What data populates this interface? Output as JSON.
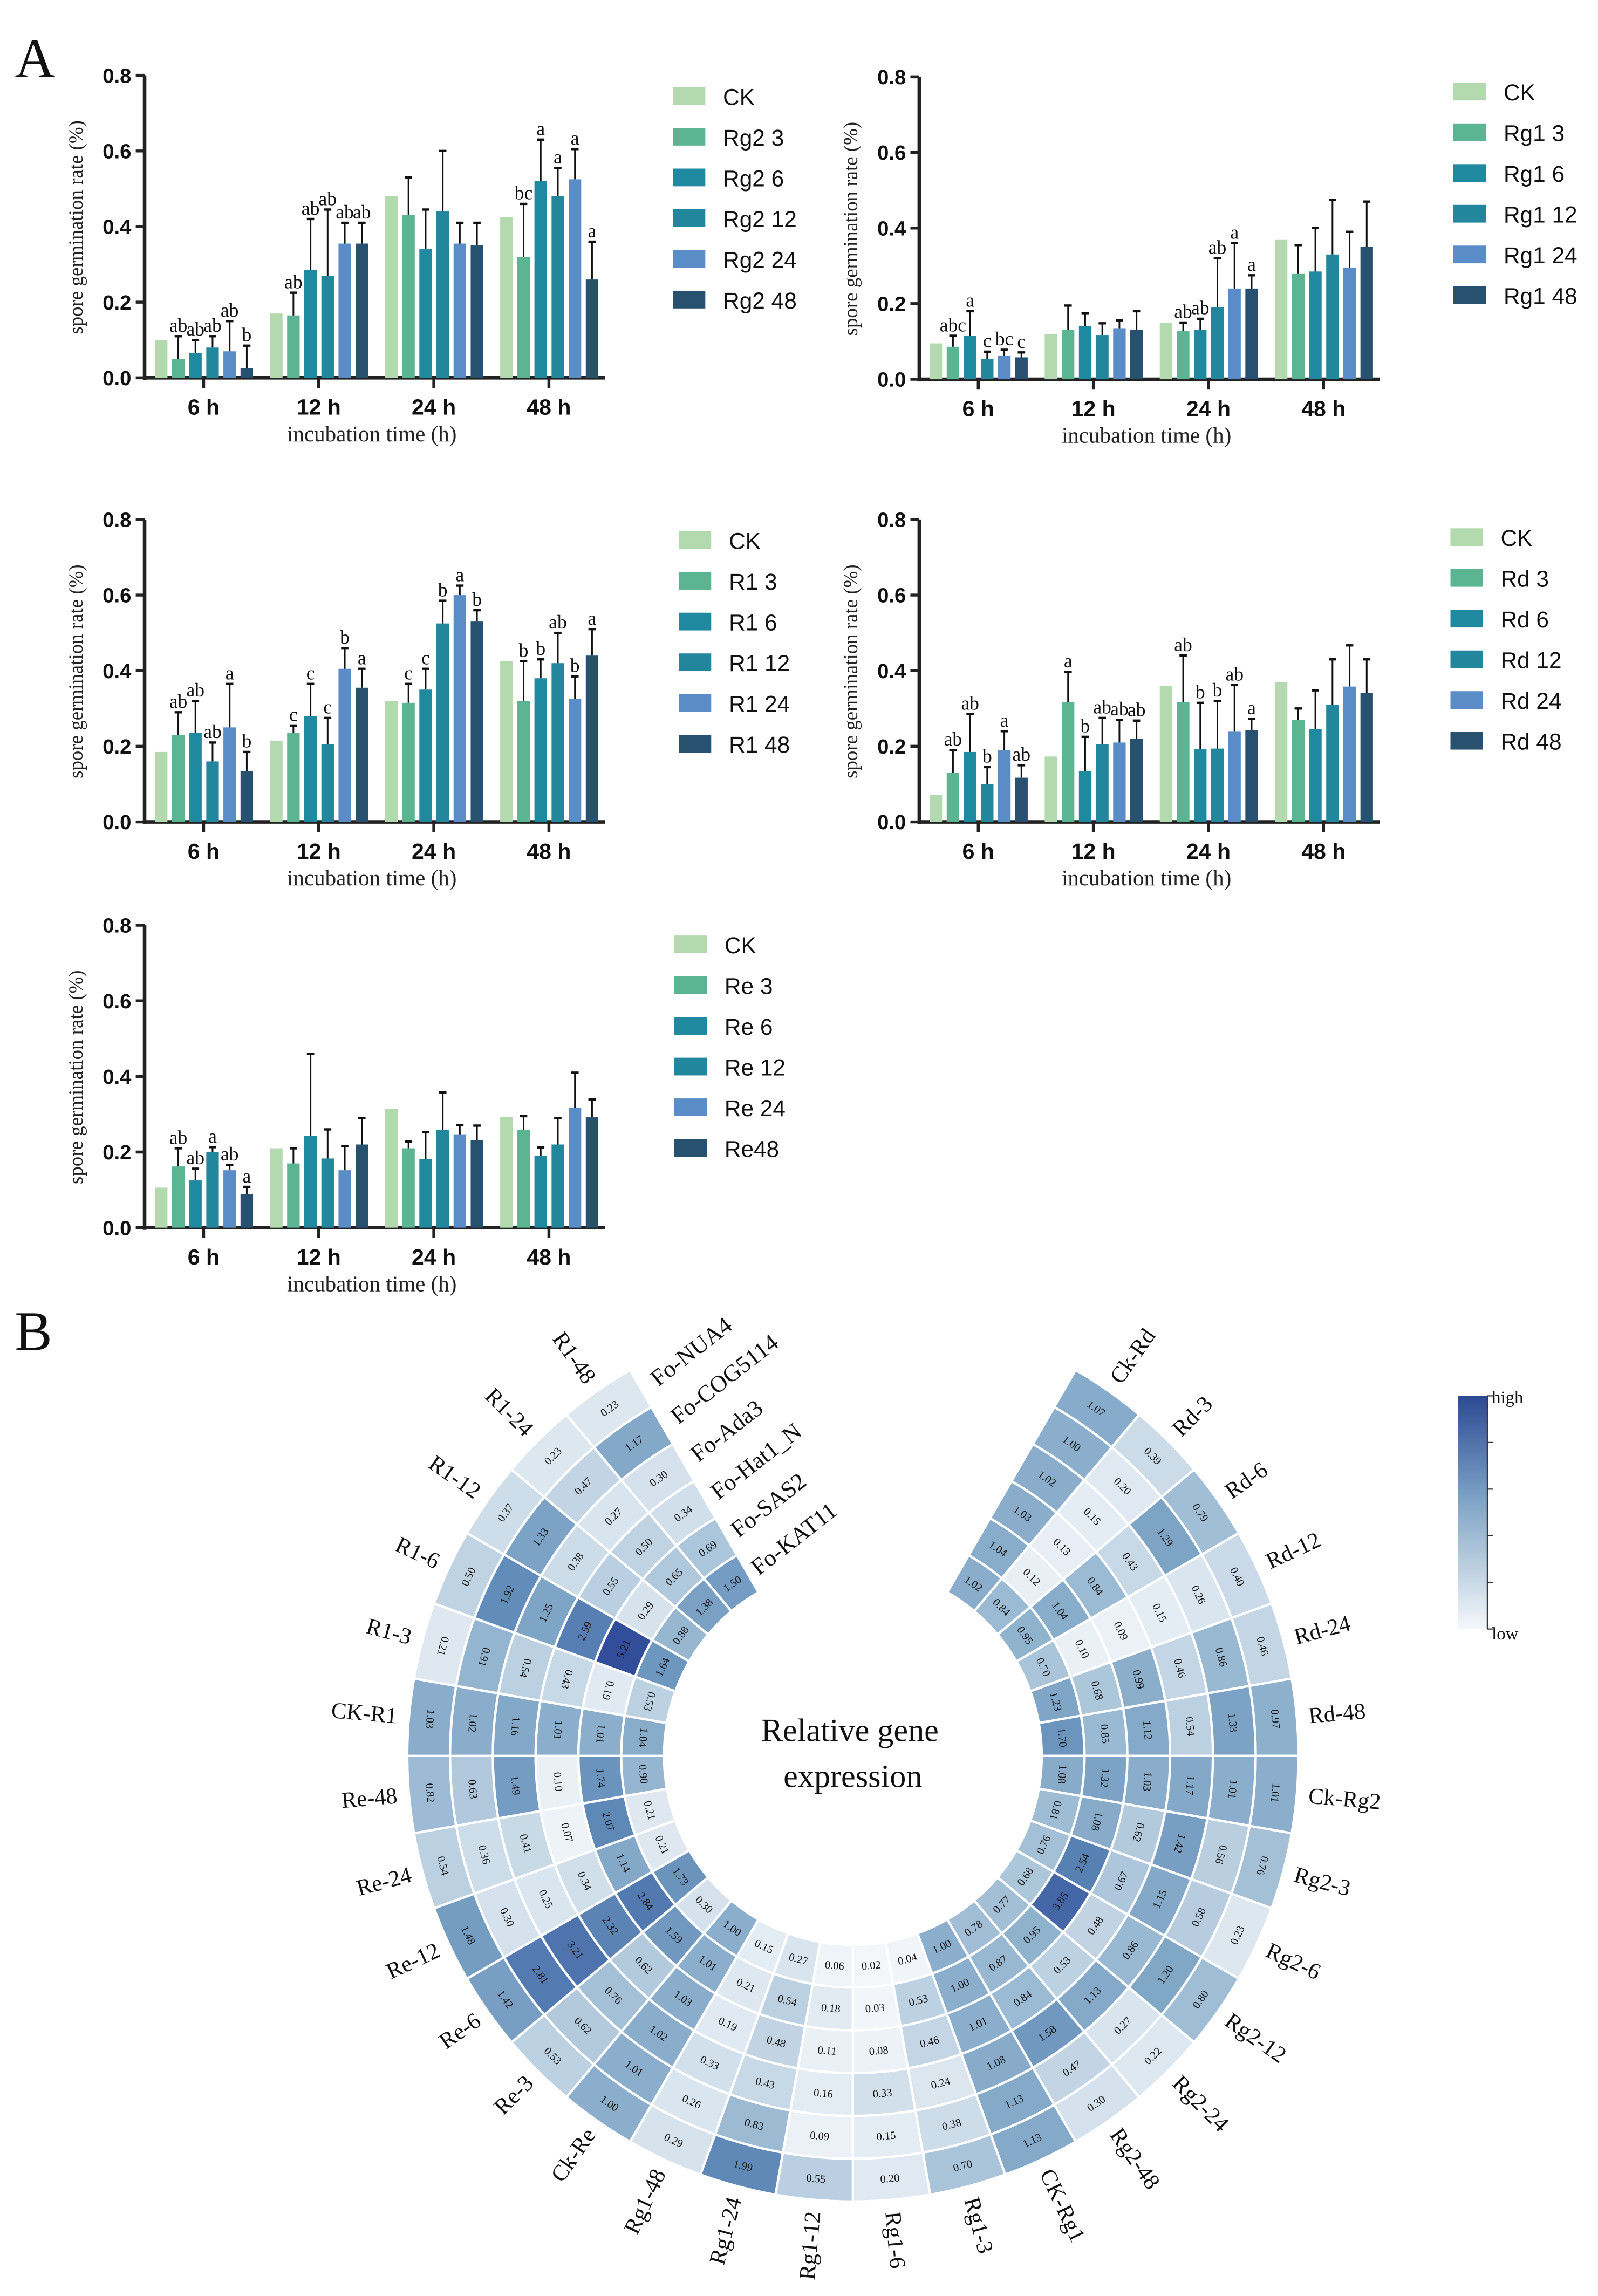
{
  "panels": {
    "a": "A",
    "b": "B"
  },
  "chart_data": [
    {
      "type": "bar",
      "ylabel": "spore germination rate (%)",
      "xlabel": "incubation time (h)",
      "categories": [
        "6 h",
        "12 h",
        "24 h",
        "48 h"
      ],
      "ylim": [
        0,
        0.8
      ],
      "yticks": [
        "0.0",
        "0.2",
        "0.4",
        "0.6",
        "0.8"
      ],
      "legend": "right",
      "series": [
        {
          "name": "CK",
          "color": "#b3d9ae",
          "values": [
            0.1,
            0.17,
            0.48,
            0.425
          ],
          "error": null,
          "letters": [
            "",
            "",
            "",
            ""
          ]
        },
        {
          "name": "Rg2 3",
          "color": "#5bb592",
          "values": [
            0.05,
            0.165,
            0.43,
            0.32
          ],
          "error": [
            0.06,
            0.06,
            0.1,
            0.14
          ],
          "letters": [
            "ab",
            "ab",
            "",
            "bc"
          ]
        },
        {
          "name": "Rg2 6",
          "color": "#1f899f",
          "values": [
            0.065,
            0.285,
            0.34,
            0.52
          ],
          "error": [
            0.035,
            0.135,
            0.105,
            0.11
          ],
          "letters": [
            "ab",
            "ab",
            "",
            "a"
          ]
        },
        {
          "name": "Rg2 12",
          "color": "#22879c",
          "values": [
            0.08,
            0.27,
            0.44,
            0.48
          ],
          "error": [
            0.03,
            0.175,
            0.16,
            0.075
          ],
          "letters": [
            "ab",
            "ab",
            "",
            "a"
          ]
        },
        {
          "name": "Rg2 24",
          "color": "#5a8dc8",
          "values": [
            0.07,
            0.355,
            0.355,
            0.525
          ],
          "error": [
            0.08,
            0.055,
            0.055,
            0.08
          ],
          "letters": [
            "ab",
            "ab",
            "",
            "a"
          ]
        },
        {
          "name": "Rg2 48",
          "color": "#27516f",
          "values": [
            0.025,
            0.355,
            0.35,
            0.26
          ],
          "error": [
            0.06,
            0.055,
            0.06,
            0.1
          ],
          "letters": [
            "b",
            "ab",
            "",
            "a"
          ]
        }
      ]
    },
    {
      "type": "bar",
      "ylabel": "spore germination rate (%)",
      "xlabel": "incubation time (h)",
      "categories": [
        "6 h",
        "12 h",
        "24 h",
        "48 h"
      ],
      "ylim": [
        0,
        0.8
      ],
      "yticks": [
        "0.0",
        "0.2",
        "0.4",
        "0.6",
        "0.8"
      ],
      "legend": "right",
      "series": [
        {
          "name": "CK",
          "color": "#b3d9ae",
          "values": [
            0.095,
            0.12,
            0.15,
            0.37
          ],
          "error": null,
          "letters": [
            "",
            "",
            "",
            ""
          ]
        },
        {
          "name": "Rg1 3",
          "color": "#5bb592",
          "values": [
            0.086,
            0.13,
            0.127,
            0.28
          ],
          "error": [
            0.029,
            0.065,
            0.023,
            0.075
          ],
          "letters": [
            "abc",
            "",
            "ab",
            ""
          ]
        },
        {
          "name": "Rg1 6",
          "color": "#1f899f",
          "values": [
            0.115,
            0.14,
            0.13,
            0.285
          ],
          "error": [
            0.065,
            0.035,
            0.03,
            0.115
          ],
          "letters": [
            "a",
            "",
            "ab",
            ""
          ]
        },
        {
          "name": "Rg1 12",
          "color": "#22879c",
          "values": [
            0.054,
            0.117,
            0.19,
            0.33
          ],
          "error": [
            0.019,
            0.031,
            0.13,
            0.145
          ],
          "letters": [
            "c",
            "",
            "ab",
            ""
          ]
        },
        {
          "name": "Rg1 24",
          "color": "#5a8dc8",
          "values": [
            0.063,
            0.135,
            0.24,
            0.295
          ],
          "error": [
            0.015,
            0.021,
            0.12,
            0.095
          ],
          "letters": [
            "bc",
            "",
            "a",
            ""
          ]
        },
        {
          "name": "Rg1 48",
          "color": "#27516f",
          "values": [
            0.058,
            0.13,
            0.24,
            0.35
          ],
          "error": [
            0.013,
            0.05,
            0.035,
            0.12
          ],
          "letters": [
            "c",
            "",
            "a",
            ""
          ]
        }
      ]
    },
    {
      "type": "bar",
      "ylabel": "spore germination rate (%)",
      "xlabel": "incubation time (h)",
      "categories": [
        "6 h",
        "12 h",
        "24 h",
        "48 h"
      ],
      "ylim": [
        0,
        0.8
      ],
      "yticks": [
        "0.0",
        "0.2",
        "0.4",
        "0.6",
        "0.8"
      ],
      "legend": "right",
      "series": [
        {
          "name": "CK",
          "color": "#b3d9ae",
          "values": [
            0.185,
            0.215,
            0.32,
            0.425
          ],
          "error": null,
          "letters": [
            "",
            "",
            "",
            ""
          ]
        },
        {
          "name": "R1 3",
          "color": "#5bb592",
          "values": [
            0.23,
            0.235,
            0.315,
            0.32
          ],
          "error": [
            0.06,
            0.02,
            0.05,
            0.105
          ],
          "letters": [
            "ab",
            "c",
            "c",
            "b"
          ]
        },
        {
          "name": "R1 6",
          "color": "#1f899f",
          "values": [
            0.235,
            0.28,
            0.35,
            0.38
          ],
          "error": [
            0.085,
            0.085,
            0.055,
            0.05
          ],
          "letters": [
            "ab",
            "c",
            "c",
            "b"
          ]
        },
        {
          "name": "R1 12",
          "color": "#22879c",
          "values": [
            0.16,
            0.205,
            0.525,
            0.42
          ],
          "error": [
            0.05,
            0.07,
            0.06,
            0.08
          ],
          "letters": [
            "ab",
            "c",
            "b",
            "ab"
          ]
        },
        {
          "name": "R1 24",
          "color": "#5a8dc8",
          "values": [
            0.25,
            0.405,
            0.6,
            0.325
          ],
          "error": [
            0.115,
            0.055,
            0.025,
            0.06
          ],
          "letters": [
            "a",
            "b",
            "a",
            "b"
          ]
        },
        {
          "name": "R1 48",
          "color": "#27516f",
          "values": [
            0.135,
            0.355,
            0.53,
            0.44
          ],
          "error": [
            0.05,
            0.05,
            0.03,
            0.07
          ],
          "letters": [
            "b",
            "a",
            "b",
            "a"
          ]
        }
      ]
    },
    {
      "type": "bar",
      "ylabel": "spore germination rate (%)",
      "xlabel": "incubation time (h)",
      "categories": [
        "6 h",
        "12 h",
        "24 h",
        "48 h"
      ],
      "ylim": [
        0,
        0.8
      ],
      "yticks": [
        "0.0",
        "0.2",
        "0.4",
        "0.6",
        "0.8"
      ],
      "legend": "right",
      "series": [
        {
          "name": "CK",
          "color": "#b3d9ae",
          "values": [
            0.072,
            0.173,
            0.36,
            0.37
          ],
          "error": null,
          "letters": [
            "",
            "",
            "",
            ""
          ]
        },
        {
          "name": "Rd 3",
          "color": "#5bb592",
          "values": [
            0.13,
            0.317,
            0.317,
            0.27
          ],
          "error": [
            0.06,
            0.08,
            0.123,
            0.03
          ],
          "letters": [
            "ab",
            "a",
            "ab",
            ""
          ]
        },
        {
          "name": "Rd 6",
          "color": "#1f899f",
          "values": [
            0.185,
            0.134,
            0.192,
            0.245
          ],
          "error": [
            0.1,
            0.091,
            0.123,
            0.103
          ],
          "letters": [
            "ab",
            "b",
            "b",
            ""
          ]
        },
        {
          "name": "Rd 12",
          "color": "#22879c",
          "values": [
            0.1,
            0.206,
            0.194,
            0.31
          ],
          "error": [
            0.045,
            0.069,
            0.126,
            0.12
          ],
          "letters": [
            "b",
            "ab",
            "b",
            ""
          ]
        },
        {
          "name": "Rd 24",
          "color": "#5a8dc8",
          "values": [
            0.19,
            0.21,
            0.24,
            0.358
          ],
          "error": [
            0.05,
            0.06,
            0.122,
            0.109
          ],
          "letters": [
            "a",
            "ab",
            "ab",
            ""
          ]
        },
        {
          "name": "Rd 48",
          "color": "#27516f",
          "values": [
            0.117,
            0.22,
            0.242,
            0.341
          ],
          "error": [
            0.033,
            0.048,
            0.031,
            0.089
          ],
          "letters": [
            "ab",
            "ab",
            "a",
            ""
          ]
        }
      ]
    },
    {
      "type": "bar",
      "ylabel": "spore germination rate (%)",
      "xlabel": "incubation time (h)",
      "categories": [
        "6 h",
        "12 h",
        "24 h",
        "48 h"
      ],
      "ylim": [
        0,
        0.8
      ],
      "yticks": [
        "0.0",
        "0.2",
        "0.4",
        "0.6",
        "0.8"
      ],
      "legend": "right",
      "series": [
        {
          "name": "CK",
          "color": "#b3d9ae",
          "values": [
            0.106,
            0.21,
            0.314,
            0.293
          ],
          "error": null,
          "letters": [
            "",
            "",
            "",
            ""
          ]
        },
        {
          "name": "Re 3",
          "color": "#5bb592",
          "values": [
            0.162,
            0.17,
            0.21,
            0.259
          ],
          "error": [
            0.048,
            0.04,
            0.018,
            0.036
          ],
          "letters": [
            "ab",
            "",
            "",
            ""
          ]
        },
        {
          "name": "Re 6",
          "color": "#1f899f",
          "values": [
            0.125,
            0.243,
            0.182,
            0.19
          ],
          "error": [
            0.031,
            0.217,
            0.071,
            0.022
          ],
          "letters": [
            "ab",
            "",
            "",
            ""
          ]
        },
        {
          "name": "Re 12",
          "color": "#22879c",
          "values": [
            0.2,
            0.183,
            0.258,
            0.22
          ],
          "error": [
            0.013,
            0.077,
            0.1,
            0.07
          ],
          "letters": [
            "a",
            "",
            "",
            ""
          ]
        },
        {
          "name": "Re 24",
          "color": "#5a8dc8",
          "values": [
            0.152,
            0.152,
            0.247,
            0.317
          ],
          "error": [
            0.014,
            0.064,
            0.024,
            0.093
          ],
          "letters": [
            "ab",
            "",
            "",
            ""
          ]
        },
        {
          "name": "Re48",
          "color": "#27516f",
          "values": [
            0.089,
            0.22,
            0.232,
            0.292
          ],
          "error": [
            0.019,
            0.07,
            0.038,
            0.047
          ],
          "letters": [
            "a",
            "",
            "",
            ""
          ]
        }
      ]
    },
    {
      "type": "heatmap",
      "layout": "circular",
      "center_title": [
        "Relative gene",
        "expression"
      ],
      "genes": [
        "Fo-NUA4",
        "Fo-COG5114",
        "Fo-Ada3",
        "Fo-Hat1_N",
        "Fo-SAS2",
        "Fo-KAT11"
      ],
      "legend": {
        "high": "high",
        "low": "low",
        "high_color": "#2c4994",
        "low_color": "#f4f8fb"
      },
      "samples": [
        "Ck-Rd",
        "Rd-3",
        "Rd-6",
        "Rd-12",
        "Rd-24",
        "Rd-48",
        "Ck-Rg2",
        "Rg2-3",
        "Rg2-6",
        "Rg2-12",
        "Rg2-24",
        "Rg2-48",
        "CK-Rg1",
        "Rg1-3",
        "Rg1-6",
        "Rg1-12",
        "Rg1-24",
        "Rg1-48",
        "Ck-Re",
        "Re-3",
        "Re-6",
        "Re-12",
        "Re-24",
        "Re-48",
        "CK-R1",
        "R1-3",
        "R1-6",
        "R1-12",
        "R1-24",
        "R1-48"
      ],
      "values": [
        [
          "1.07",
          "1.00",
          "1.02",
          "1.03",
          "1.04",
          "1.02"
        ],
        [
          "0.39",
          "0.20",
          "0.15",
          "0.13",
          "0.12",
          "0.84"
        ],
        [
          "0.79",
          "1.29",
          "0.43",
          "0.84",
          "1.04",
          "0.95"
        ],
        [
          "0.40",
          "0.26",
          "0.15",
          "0.09",
          "0.10",
          "0.70"
        ],
        [
          "0.46",
          "0.86",
          "0.46",
          "0.99",
          "0.68",
          "1.23"
        ],
        [
          "0.97",
          "1.33",
          "0.54",
          "1.12",
          "0.85",
          "1.70"
        ],
        [
          "1.01",
          "1.01",
          "1.17",
          "1.03",
          "1.32",
          "1.08"
        ],
        [
          "0.76",
          "0.56",
          "1.42",
          "0.62",
          "1.08",
          "0.81"
        ],
        [
          "0.23",
          "0.58",
          "1.15",
          "0.67",
          "2.54",
          "0.76"
        ],
        [
          "0.80",
          "1.20",
          "0.86",
          "0.48",
          "3.85",
          "0.68"
        ],
        [
          "0.22",
          "0.27",
          "1.13",
          "0.53",
          "0.95",
          "0.77"
        ],
        [
          "0.30",
          "0.47",
          "1.58",
          "0.84",
          "0.87",
          "0.78"
        ],
        [
          "1.13",
          "1.13",
          "1.08",
          "1.01",
          "1.00",
          "1.00"
        ],
        [
          "0.70",
          "0.38",
          "0.24",
          "0.46",
          "0.53",
          "0.04"
        ],
        [
          "0.20",
          "0.15",
          "0.33",
          "0.08",
          "0.03",
          "0.02"
        ],
        [
          "0.55",
          "0.09",
          "0.16",
          "0.11",
          "0.18",
          "0.06"
        ],
        [
          "1.99",
          "0.83",
          "0.43",
          "0.48",
          "0.54",
          "0.27"
        ],
        [
          "0.29",
          "0.26",
          "0.33",
          "0.19",
          "0.21",
          "0.15"
        ],
        [
          "1.00",
          "1.01",
          "1.02",
          "1.03",
          "1.01",
          "1.00"
        ],
        [
          "0.53",
          "0.62",
          "0.76",
          "0.62",
          "1.59",
          "0.30"
        ],
        [
          "1.42",
          "2.81",
          "3.21",
          "2.32",
          "2.84",
          "1.73"
        ],
        [
          "1.48",
          "0.30",
          "0.25",
          "0.34",
          "1.14",
          "0.21"
        ],
        [
          "0.54",
          "0.36",
          "0.41",
          "0.07",
          "2.07",
          "0.21"
        ],
        [
          "0.82",
          "0.63",
          "1.49",
          "0.10",
          "1.74",
          "0.90"
        ],
        [
          "1.03",
          "1.02",
          "1.16",
          "1.01",
          "1.01",
          "1.04"
        ],
        [
          "0.21",
          "0.91",
          "0.54",
          "0.43",
          "0.19",
          "0.53"
        ],
        [
          "0.50",
          "1.92",
          "1.25",
          "2.59",
          "5.21",
          "1.64"
        ],
        [
          "0.37",
          "1.33",
          "0.38",
          "0.55",
          "0.29",
          "0.88"
        ],
        [
          "0.23",
          "0.47",
          "0.27",
          "0.50",
          "0.65",
          "1.38"
        ],
        [
          "0.23",
          "1.17",
          "0.30",
          "0.34",
          "0.69",
          "1.50"
        ]
      ]
    }
  ]
}
